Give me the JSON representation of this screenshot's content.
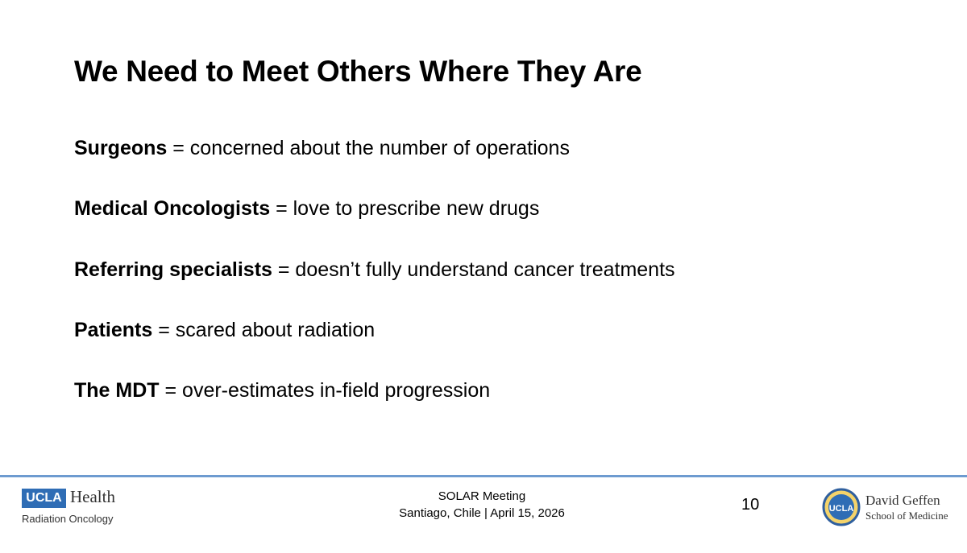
{
  "slide": {
    "title": "We Need to Meet Others Where They Are",
    "items": [
      {
        "term": "Surgeons",
        "text": "= concerned about the number of operations"
      },
      {
        "term": "Medical Oncologists",
        "text": "= love to prescribe new drugs"
      },
      {
        "term": "Referring specialists",
        "text": "= doesn’t fully understand cancer treatments"
      },
      {
        "term": "Patients",
        "text": "= scared about radiation"
      },
      {
        "term": "The MDT",
        "text": "= over-estimates in-field progression"
      }
    ]
  },
  "footer": {
    "left_logo": {
      "badge": "UCLA",
      "name": "Health",
      "department": "Radiation Oncology"
    },
    "meeting": "SOLAR Meeting",
    "place_date": "Santiago, Chile | April 15, 2026",
    "page_number": "10",
    "right_logo": {
      "seal": "UCLA",
      "name": "David Geffen",
      "school": "School of Medicine"
    }
  }
}
